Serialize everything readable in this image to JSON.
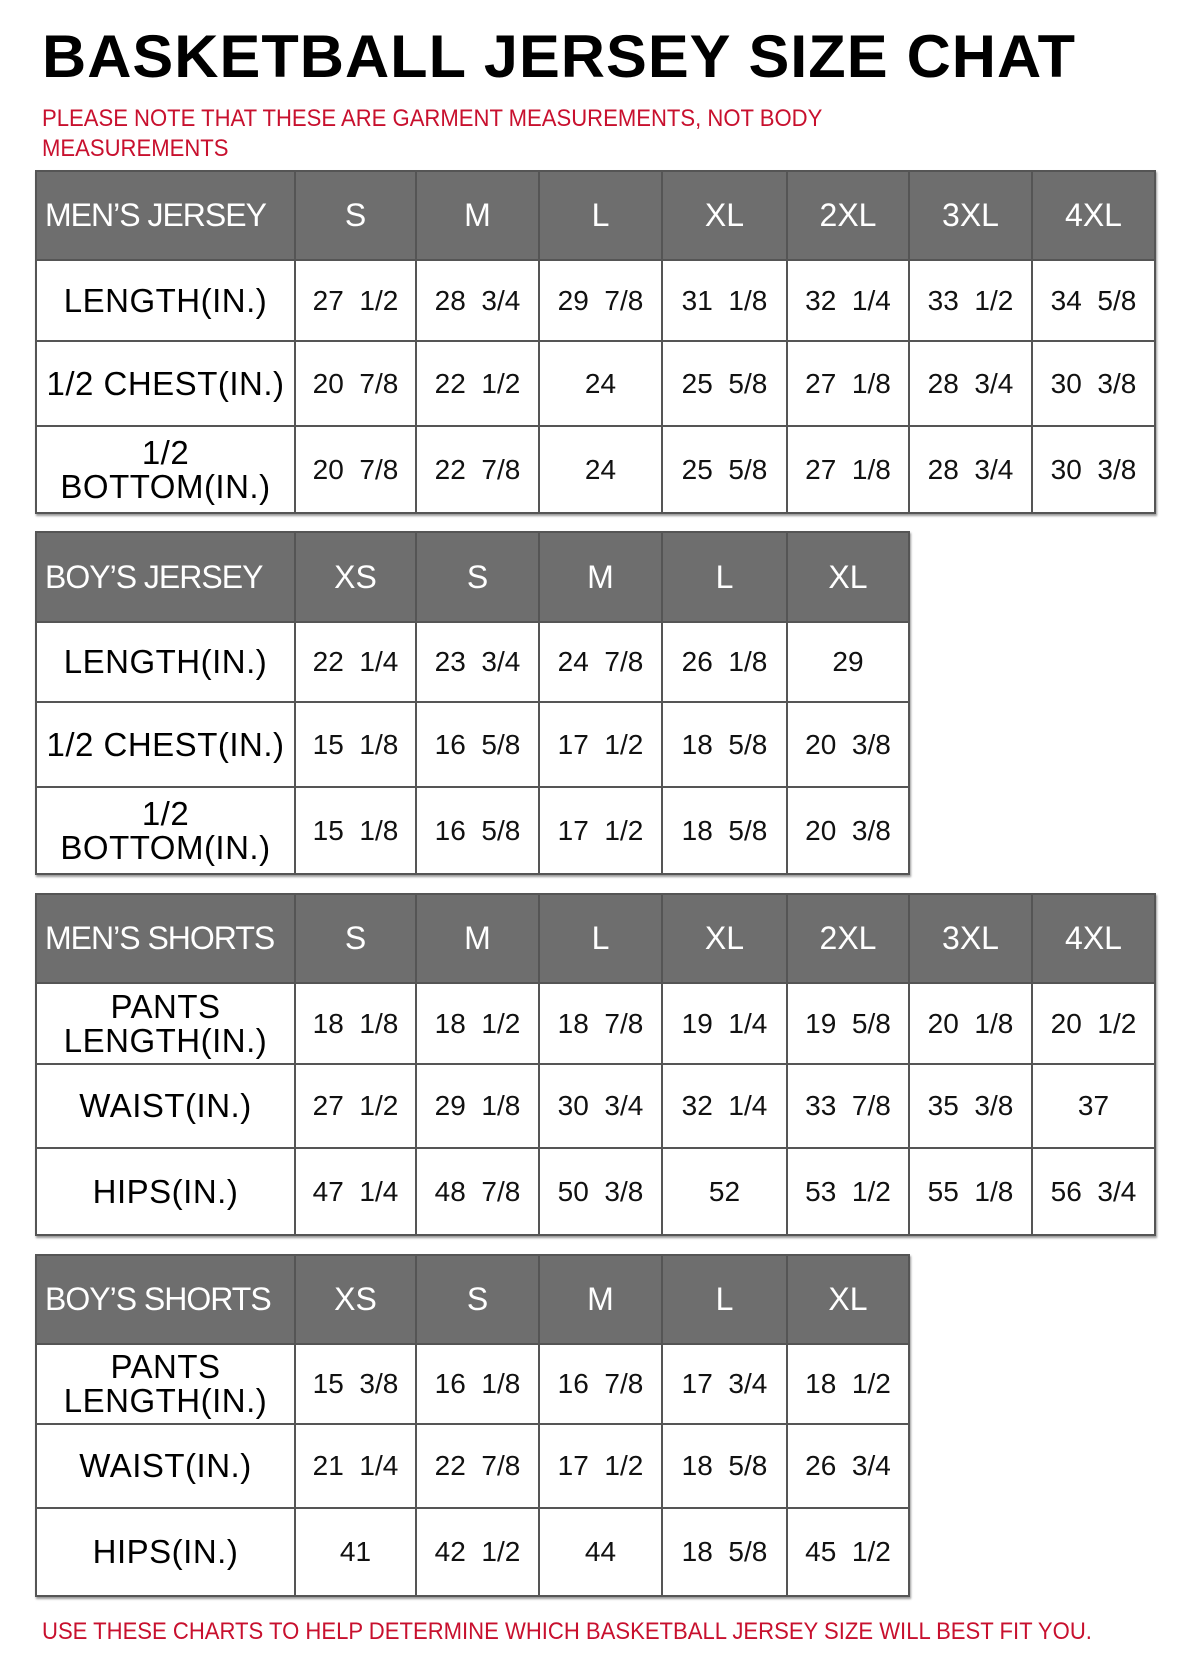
{
  "title": "BASKETBALL JERSEY SIZE CHAT",
  "note": "PLEASE NOTE THAT THESE ARE GARMENT MEASUREMENTS, NOT BODY MEASUREMENTS",
  "footer": "USE THESE CHARTS TO HELP DETERMINE WHICH BASKETBALL JERSEY SIZE WILL BEST FIT YOU.",
  "colors": {
    "header_bg": "#6e6e6e",
    "note_red": "#c8102e"
  },
  "tables": [
    {
      "name": "MEN’S JERSEY",
      "sizes": [
        "S",
        "M",
        "L",
        "XL",
        "2XL",
        "3XL",
        "4XL"
      ],
      "rows": [
        {
          "label": "LENGTH(IN.)",
          "values": [
            "27  1/2",
            "28  3/4",
            "29  7/8",
            "31  1/8",
            "32  1/4",
            "33  1/2",
            "34  5/8"
          ]
        },
        {
          "label": "1/2  CHEST(IN.)",
          "values": [
            "20  7/8",
            "22  1/2",
            "24",
            "25  5/8",
            "27  1/8",
            "28  3/4",
            "30  3/8"
          ]
        },
        {
          "label": "1/2  BOTTOM(IN.)",
          "values": [
            "20  7/8",
            "22  7/8",
            "24",
            "25  5/8",
            "27  1/8",
            "28  3/4",
            "30  3/8"
          ]
        }
      ]
    },
    {
      "name": "BOY’S JERSEY",
      "sizes": [
        "XS",
        "S",
        "M",
        "L",
        "XL"
      ],
      "rows": [
        {
          "label": "LENGTH(IN.)",
          "values": [
            "22  1/4",
            "23  3/4",
            "24  7/8",
            "26  1/8",
            "29"
          ]
        },
        {
          "label": "1/2  CHEST(IN.)",
          "values": [
            "15  1/8",
            "16  5/8",
            "17  1/2",
            "18  5/8",
            "20  3/8"
          ]
        },
        {
          "label": "1/2  BOTTOM(IN.)",
          "values": [
            "15  1/8",
            "16  5/8",
            "17  1/2",
            "18  5/8",
            "20  3/8"
          ]
        }
      ]
    },
    {
      "name": "MEN’S SHORTS",
      "sizes": [
        "S",
        "M",
        "L",
        "XL",
        "2XL",
        "3XL",
        "4XL"
      ],
      "rows": [
        {
          "label": "PANTS LENGTH(IN.)",
          "values": [
            "18  1/8",
            "18  1/2",
            "18  7/8",
            "19  1/4",
            "19  5/8",
            "20  1/8",
            "20  1/2"
          ]
        },
        {
          "label": "WAIST(IN.)",
          "values": [
            "27  1/2",
            "29  1/8",
            "30  3/4",
            "32  1/4",
            "33  7/8",
            "35  3/8",
            "37"
          ]
        },
        {
          "label": "HIPS(IN.)",
          "values": [
            "47  1/4",
            "48  7/8",
            "50  3/8",
            "52",
            "53  1/2",
            "55  1/8",
            "56  3/4"
          ]
        }
      ]
    },
    {
      "name": "BOY’S SHORTS",
      "sizes": [
        "XS",
        "S",
        "M",
        "L",
        "XL"
      ],
      "rows": [
        {
          "label": "PANTS LENGTH(IN.)",
          "values": [
            "15  3/8",
            "16  1/8",
            "16  7/8",
            "17  3/4",
            "18  1/2"
          ]
        },
        {
          "label": "WAIST(IN.)",
          "values": [
            "21  1/4",
            "22  7/8",
            "17  1/2",
            "18  5/8",
            "26  3/4"
          ]
        },
        {
          "label": "HIPS(IN.)",
          "values": [
            "41",
            "42  1/2",
            "44",
            "18  5/8",
            "45  1/2"
          ]
        }
      ]
    }
  ]
}
